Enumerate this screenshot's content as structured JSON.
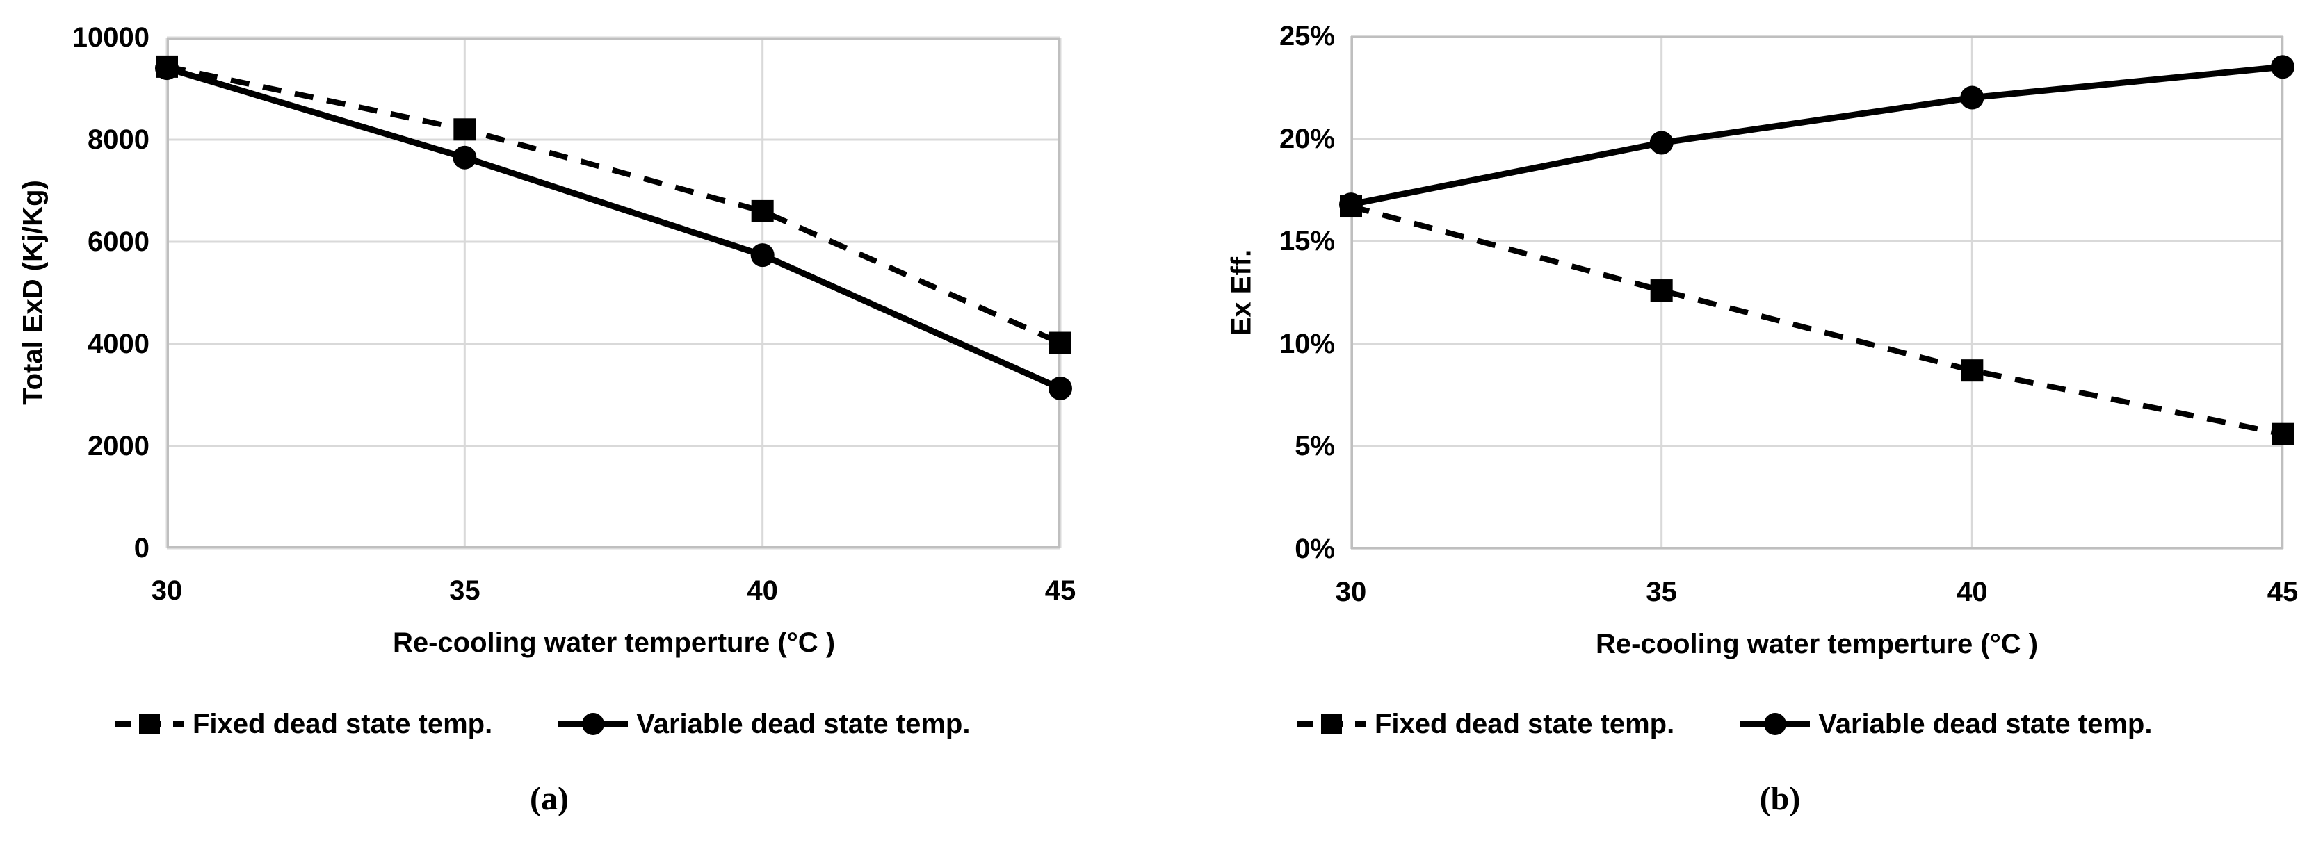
{
  "colors": {
    "series": "#000000",
    "gridline": "#d9d9d9",
    "frame": "#bfbfbf",
    "text": "#000000",
    "background": "#ffffff"
  },
  "captions": {
    "a": "(a)",
    "b": "(b)"
  },
  "chart_data": [
    {
      "type": "line",
      "panel": "a",
      "title": "",
      "xlabel": "Re-cooling water temperture (°C )",
      "ylabel": "Total ExD (Kj/Kg)",
      "x": [
        30,
        35,
        40,
        45
      ],
      "xlim": [
        30,
        45
      ],
      "ylim": [
        0,
        10000
      ],
      "xticks": [
        30,
        35,
        40,
        45
      ],
      "xtick_labels": [
        "30",
        "35",
        "40",
        "45"
      ],
      "yticks": [
        0,
        2000,
        4000,
        6000,
        8000,
        10000
      ],
      "ytick_labels": [
        "0",
        "2000",
        "4000",
        "6000",
        "8000",
        "10000"
      ],
      "grid": true,
      "legend_position": "bottom",
      "series": [
        {
          "name": "Fixed dead state temp.",
          "line_style": "dashed",
          "marker": "square",
          "color": "#000000",
          "values": [
            9430,
            8200,
            6600,
            4020
          ]
        },
        {
          "name": "Variable dead state temp.",
          "line_style": "solid",
          "marker": "circle",
          "color": "#000000",
          "values": [
            9400,
            7650,
            5740,
            3130
          ]
        }
      ]
    },
    {
      "type": "line",
      "panel": "b",
      "title": "",
      "xlabel": "Re-cooling water temperture (°C )",
      "ylabel": "Ex Eff.",
      "x": [
        30,
        35,
        40,
        45
      ],
      "xlim": [
        30,
        45
      ],
      "ylim": [
        0,
        25
      ],
      "xticks": [
        30,
        35,
        40,
        45
      ],
      "xtick_labels": [
        "30",
        "35",
        "40",
        "45"
      ],
      "yticks": [
        0,
        5,
        10,
        15,
        20,
        25
      ],
      "ytick_labels": [
        "0%",
        "5%",
        "10%",
        "15%",
        "20%",
        "25%"
      ],
      "grid": true,
      "legend_position": "bottom",
      "series": [
        {
          "name": "Fixed dead state temp.",
          "line_style": "dashed",
          "marker": "square",
          "color": "#000000",
          "values": [
            16.7,
            12.6,
            8.7,
            5.6
          ]
        },
        {
          "name": "Variable dead state temp.",
          "line_style": "solid",
          "marker": "circle",
          "color": "#000000",
          "values": [
            16.8,
            19.8,
            22.0,
            23.5
          ]
        }
      ]
    }
  ]
}
